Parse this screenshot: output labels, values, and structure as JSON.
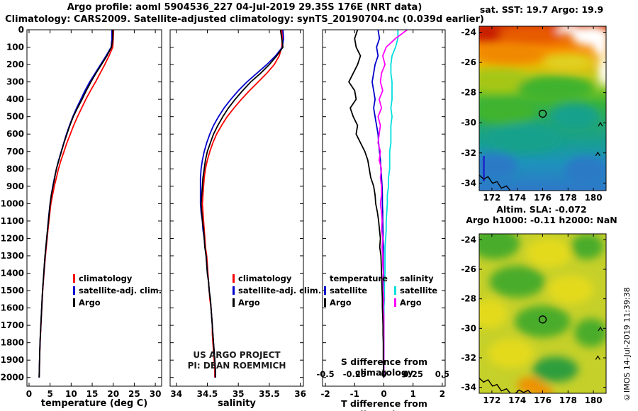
{
  "header": {
    "line1": "Argo profile: aoml 5904536_227 04-Jul-2019 29.35S 176E (NRT data)",
    "line2": "Climatology: CARS2009. Satellite-adjusted climatology: synTS_20190704.nc (0.039d earlier)"
  },
  "credit": "©IMOS 14-Jul-2019 11:39:38",
  "watermark": {
    "line1": "US ARGO PROJECT",
    "line2": "PI: DEAN ROEMMICH"
  },
  "colors": {
    "clim": "#ff0000",
    "sat": "#0000cc",
    "argo": "#000000",
    "sal_sat": "#00dede",
    "sal_argo": "#ff00ff"
  },
  "maps": {
    "lon_ticks": [
      172,
      174,
      176,
      178,
      180
    ],
    "lat_ticks": [
      -24,
      -26,
      -28,
      -30,
      -32,
      -34
    ],
    "lon_range": [
      171,
      181
    ],
    "marker": {
      "lon": 176,
      "lat": -29.4
    },
    "palette": {
      "white": "#ffffff",
      "red": "#c81e00",
      "orange_dark": "#e85c00",
      "orange": "#f08800",
      "yellow": "#e0d020",
      "yellow_green": "#a6c617",
      "green": "#41b32d",
      "teal": "#17a18c",
      "blue": "#2b7ac6",
      "sla_green": "#48ac2c",
      "sla_dark": "#2f9e3c",
      "sla_yellow": "#e4da1e",
      "warm": "#f09000"
    },
    "sst": {
      "title": "sat. SST: 19.7  Argo: 19.9",
      "lat_range": [
        -23.6,
        -34.5
      ],
      "gradient": [
        {
          "o": 0.0,
          "c": "#cf2e00"
        },
        {
          "o": 0.07,
          "c": "#ea6300"
        },
        {
          "o": 0.15,
          "c": "#f79100"
        },
        {
          "o": 0.23,
          "c": "#e7b800"
        },
        {
          "o": 0.3,
          "c": "#c2c818"
        },
        {
          "o": 0.38,
          "c": "#7ec41e"
        },
        {
          "o": 0.47,
          "c": "#3bb33b"
        },
        {
          "o": 0.58,
          "c": "#27a869"
        },
        {
          "o": 0.7,
          "c": "#189f90"
        },
        {
          "o": 0.83,
          "c": "#1d93bb"
        },
        {
          "o": 1.0,
          "c": "#2e78c8"
        }
      ]
    },
    "sla": {
      "title1": "Altim. SLA: -0.072",
      "title2": "Argo h1000: -0.11 h2000: NaN",
      "lat_range": [
        -23.6,
        -34.4
      ],
      "base": "#c6d02a"
    }
  },
  "chart_data": {
    "ylim": [
      0,
      2050
    ],
    "y_ticks": [
      0,
      100,
      200,
      300,
      400,
      500,
      600,
      700,
      800,
      900,
      1000,
      1100,
      1200,
      1300,
      1400,
      1500,
      1600,
      1700,
      1800,
      1900,
      2000
    ],
    "depths_m": [
      0,
      50,
      100,
      150,
      200,
      250,
      300,
      350,
      400,
      450,
      500,
      550,
      600,
      650,
      700,
      750,
      800,
      850,
      900,
      950,
      1000,
      1050,
      1100,
      1150,
      1200,
      1250,
      1300,
      1350,
      1400,
      1450,
      1500,
      1550,
      1600,
      1650,
      1700,
      1750,
      1800,
      1850,
      1900,
      1950,
      2000
    ],
    "temperature_plot": {
      "type": "line",
      "xlabel": "temperature (deg C)",
      "x_ticks": [
        0,
        5,
        10,
        15,
        20,
        25,
        30
      ],
      "xlim": [
        -0.5,
        31.5
      ],
      "series": [
        {
          "name": "climatology",
          "color": "clim",
          "values": [
            20.1,
            20.0,
            19.9,
            19.0,
            18.0,
            16.9,
            15.8,
            14.6,
            13.5,
            12.5,
            11.5,
            10.6,
            9.8,
            9.0,
            8.3,
            7.6,
            7.0,
            6.5,
            6.0,
            5.6,
            5.2,
            4.95,
            4.72,
            4.5,
            4.3,
            4.1,
            3.9,
            3.73,
            3.56,
            3.4,
            3.26,
            3.14,
            3.03,
            2.93,
            2.83,
            2.73,
            2.64,
            2.57,
            2.51,
            2.46,
            2.41
          ]
        },
        {
          "name": "satellite-adj. clim.",
          "color": "sat",
          "values": [
            19.7,
            19.7,
            19.5,
            18.3,
            17.0,
            15.7,
            14.4,
            13.3,
            12.3,
            11.3,
            10.4,
            9.6,
            8.9,
            8.25,
            7.65,
            7.05,
            6.5,
            6.05,
            5.65,
            5.3,
            5.0,
            4.78,
            4.57,
            4.38,
            4.2,
            4.0,
            3.82,
            3.66,
            3.5,
            3.36,
            3.22,
            3.1,
            3.0,
            2.9,
            2.8,
            2.7,
            2.61,
            2.55,
            2.5,
            2.45,
            2.4
          ]
        },
        {
          "name": "Argo",
          "color": "argo",
          "values": [
            19.9,
            19.9,
            19.6,
            18.5,
            17.2,
            15.9,
            14.7,
            13.6,
            12.6,
            11.5,
            10.5,
            9.7,
            9.0,
            8.3,
            7.7,
            7.1,
            6.5,
            6.1,
            5.7,
            5.3,
            5.0,
            4.8,
            4.6,
            4.4,
            4.2,
            4.0,
            3.8,
            3.65,
            3.5,
            3.35,
            3.2,
            3.1,
            3.0,
            2.9,
            2.8,
            2.7,
            2.6,
            2.55,
            2.5,
            2.45,
            2.4
          ]
        }
      ]
    },
    "salinity_plot": {
      "type": "line",
      "xlabel": "salinity",
      "x_ticks": [
        34,
        34.5,
        35,
        35.5,
        36
      ],
      "xlim": [
        33.9,
        36.05
      ],
      "series": [
        {
          "name": "climatology",
          "color": "clim",
          "values": [
            35.7,
            35.71,
            35.7,
            35.66,
            35.58,
            35.46,
            35.32,
            35.18,
            35.05,
            34.93,
            34.82,
            34.73,
            34.65,
            34.59,
            34.54,
            34.5,
            34.47,
            34.45,
            34.44,
            34.43,
            34.42,
            34.43,
            34.44,
            34.45,
            34.46,
            34.47,
            34.49,
            34.5,
            34.51,
            34.52,
            34.53,
            34.54,
            34.56,
            34.57,
            34.58,
            34.58,
            34.59,
            34.6,
            34.61,
            34.62,
            34.62
          ]
        },
        {
          "name": "satellite-adj. clim.",
          "color": "sat",
          "values": [
            35.72,
            35.73,
            35.71,
            35.6,
            35.46,
            35.3,
            35.14,
            35.0,
            34.88,
            34.77,
            34.68,
            34.6,
            34.54,
            34.49,
            34.45,
            34.42,
            34.4,
            34.39,
            34.39,
            34.39,
            34.39,
            34.4,
            34.42,
            34.43,
            34.45,
            34.46,
            34.48,
            34.49,
            34.5,
            34.52,
            34.53,
            34.55,
            34.56,
            34.57,
            34.58,
            34.59,
            34.6,
            34.61,
            34.62,
            34.63,
            34.63
          ]
        },
        {
          "name": "Argo",
          "color": "argo",
          "values": [
            35.68,
            35.7,
            35.72,
            35.62,
            35.5,
            35.36,
            35.2,
            35.07,
            34.95,
            34.84,
            34.75,
            34.67,
            34.6,
            34.55,
            34.5,
            34.47,
            34.45,
            34.43,
            34.42,
            34.41,
            34.4,
            34.41,
            34.42,
            34.44,
            34.45,
            34.46,
            34.48,
            34.49,
            34.5,
            34.52,
            34.53,
            34.55,
            34.56,
            34.57,
            34.58,
            34.59,
            34.6,
            34.61,
            34.62,
            34.63,
            34.63
          ]
        }
      ]
    },
    "difference_plot": {
      "type": "line",
      "xlabel": "T difference from climatology",
      "s_axis_label": "S difference from climatology",
      "x_ticks": [
        -2,
        -1,
        0,
        1,
        2
      ],
      "s_ticks": [
        -0.5,
        -0.25,
        0,
        0.25,
        0.5
      ],
      "s_tick_labels": [
        "-0.5",
        "-0.25",
        "0",
        "0.25",
        "0.5"
      ],
      "xlim": [
        -2.1,
        2.1
      ],
      "s_factor": 4,
      "series": [
        {
          "name": "temperature satellite",
          "axis": "T",
          "color": "sat",
          "values": [
            -0.2,
            -0.15,
            -0.25,
            -0.2,
            -0.3,
            -0.35,
            -0.4,
            -0.35,
            -0.3,
            -0.35,
            -0.3,
            -0.25,
            -0.2,
            -0.18,
            -0.15,
            -0.12,
            -0.1,
            -0.08,
            -0.06,
            -0.05,
            -0.05,
            -0.04,
            -0.04,
            -0.03,
            -0.03,
            -0.02,
            -0.02,
            -0.02,
            -0.01,
            -0.01,
            -0.01,
            -0.01,
            0,
            0,
            0,
            0,
            0,
            0,
            0,
            0,
            0
          ]
        },
        {
          "name": "salinity satellite",
          "axis": "S",
          "color": "sal_sat",
          "values": [
            0.12,
            0.12,
            0.1,
            0.07,
            0.06,
            0.06,
            0.07,
            0.07,
            0.07,
            0.06,
            0.07,
            0.06,
            0.06,
            0.06,
            0.05,
            0.05,
            0.05,
            0.04,
            0.04,
            0.03,
            0.03,
            0.025,
            0.02,
            0.02,
            0.015,
            0.01,
            0.01,
            0.01,
            0.01,
            0.005,
            0.005,
            0.005,
            0,
            0,
            0,
            0,
            0,
            0,
            0,
            0,
            0
          ]
        },
        {
          "name": "salinity Argo",
          "axis": "S",
          "color": "sal_argo",
          "values": [
            0.2,
            0.1,
            0.02,
            -0.01,
            0.01,
            -0.02,
            -0.03,
            -0.01,
            -0.04,
            -0.02,
            -0.05,
            -0.03,
            -0.04,
            -0.05,
            -0.03,
            -0.04,
            -0.02,
            -0.03,
            -0.02,
            -0.02,
            -0.03,
            -0.02,
            -0.015,
            -0.02,
            -0.01,
            -0.015,
            -0.01,
            -0.01,
            -0.005,
            -0.01,
            -0.005,
            0,
            -0.005,
            0,
            0,
            0,
            0,
            0,
            0,
            0,
            0
          ]
        },
        {
          "name": "temperature Argo",
          "axis": "T",
          "color": "argo",
          "values": [
            -0.9,
            -1.0,
            -0.95,
            -0.8,
            -0.9,
            -1.05,
            -1.2,
            -1.0,
            -0.95,
            -1.15,
            -1.05,
            -0.9,
            -0.95,
            -0.8,
            -0.65,
            -0.55,
            -0.5,
            -0.45,
            -0.35,
            -0.3,
            -0.28,
            -0.22,
            -0.18,
            -0.15,
            -0.12,
            -0.14,
            -0.1,
            -0.09,
            -0.08,
            -0.07,
            -0.06,
            -0.05,
            -0.05,
            -0.04,
            -0.03,
            -0.03,
            -0.02,
            -0.02,
            -0.02,
            -0.01,
            -0.01
          ]
        }
      ],
      "legend": {
        "col1_header": "temperature",
        "col2_header": "salinity",
        "col1": [
          {
            "label": "satellite",
            "color": "sat"
          },
          {
            "label": "Argo",
            "color": "argo"
          }
        ],
        "col2": [
          {
            "label": "satellite",
            "color": "sal_sat"
          },
          {
            "label": "Argo",
            "color": "sal_argo"
          }
        ]
      }
    }
  }
}
